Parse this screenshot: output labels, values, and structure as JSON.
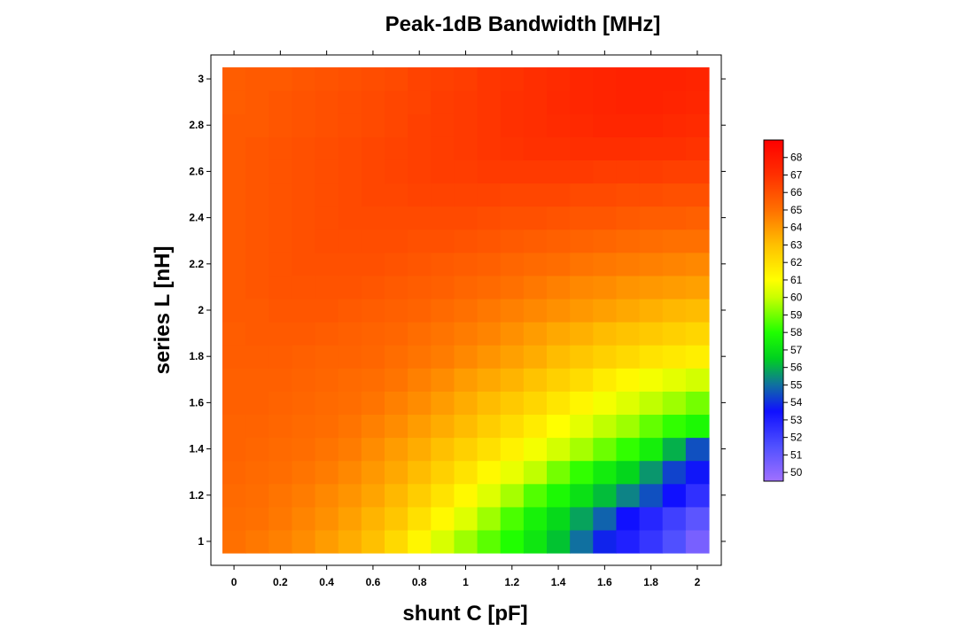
{
  "chart_data": {
    "type": "heatmap",
    "title": "Peak-1dB Bandwidth [MHz]",
    "xlabel": "shunt C [pF]",
    "ylabel": "series L [nH]",
    "xlim": [
      -0.05,
      2.05
    ],
    "ylim": [
      0.95,
      3.05
    ],
    "x_ticks": [
      0,
      0.2,
      0.4,
      0.6,
      0.8,
      1,
      1.2,
      1.4,
      1.6,
      1.8,
      2
    ],
    "x_tick_labels": [
      "0",
      "0.2",
      "0.4",
      "0.6",
      "0.8",
      "1",
      "1.2",
      "1.4",
      "1.6",
      "1.8",
      "2"
    ],
    "y_ticks": [
      1,
      1.2,
      1.4,
      1.6,
      1.8,
      2,
      2.2,
      2.4,
      2.6,
      2.8,
      3
    ],
    "y_tick_labels": [
      "1",
      "1.2",
      "1.4",
      "1.6",
      "1.8",
      "2",
      "2.2",
      "2.4",
      "2.6",
      "2.8",
      "3"
    ],
    "x": [
      0,
      0.1,
      0.2,
      0.3,
      0.4,
      0.5,
      0.6,
      0.7,
      0.8,
      0.9,
      1.0,
      1.1,
      1.2,
      1.3,
      1.4,
      1.5,
      1.6,
      1.7,
      1.8,
      1.9,
      2.0
    ],
    "y": [
      1.0,
      1.1,
      1.2,
      1.3,
      1.4,
      1.5,
      1.6,
      1.7,
      1.8,
      1.9,
      2.0,
      2.1,
      2.2,
      2.3,
      2.4,
      2.5,
      2.6,
      2.7,
      2.8,
      2.9,
      3.0
    ],
    "z_rows_low_to_high_y": [
      [
        65.0,
        64.8,
        64.6,
        64.3,
        63.9,
        63.5,
        63.0,
        62.2,
        61.3,
        60.3,
        59.5,
        58.7,
        58.0,
        57.2,
        56.3,
        55.0,
        53.8,
        53.0,
        52.3,
        51.5,
        50.5
      ],
      [
        65.1,
        65.0,
        64.8,
        64.5,
        64.2,
        63.8,
        63.3,
        62.8,
        62.0,
        61.2,
        60.4,
        59.5,
        58.5,
        57.6,
        56.8,
        55.8,
        54.8,
        53.5,
        52.8,
        52.0,
        51.2
      ],
      [
        65.2,
        65.1,
        64.9,
        64.7,
        64.4,
        64.1,
        63.7,
        63.2,
        62.6,
        61.9,
        61.2,
        60.4,
        59.6,
        58.6,
        57.8,
        57.0,
        56.2,
        55.3,
        54.5,
        53.5,
        52.5
      ],
      [
        65.3,
        65.2,
        65.1,
        64.9,
        64.7,
        64.4,
        64.0,
        63.6,
        63.1,
        62.5,
        61.9,
        61.2,
        60.6,
        59.9,
        59.0,
        58.2,
        57.4,
        56.7,
        55.6,
        54.3,
        53.6
      ],
      [
        65.4,
        65.3,
        65.2,
        65.1,
        64.9,
        64.7,
        64.3,
        63.9,
        63.5,
        63.0,
        62.5,
        62.0,
        61.4,
        60.8,
        60.2,
        59.6,
        58.9,
        58.2,
        57.5,
        56.0,
        54.5
      ],
      [
        65.4,
        65.4,
        65.3,
        65.2,
        65.1,
        64.9,
        64.6,
        64.3,
        63.9,
        63.5,
        63.1,
        62.6,
        62.1,
        61.6,
        61.0,
        60.5,
        59.9,
        59.5,
        58.8,
        58.2,
        57.8
      ],
      [
        65.5,
        65.5,
        65.4,
        65.3,
        65.2,
        65.1,
        64.9,
        64.6,
        64.3,
        63.9,
        63.5,
        63.1,
        62.7,
        62.3,
        61.8,
        61.3,
        60.8,
        60.4,
        59.9,
        59.5,
        59.0
      ],
      [
        65.5,
        65.5,
        65.5,
        65.4,
        65.3,
        65.2,
        65.1,
        64.9,
        64.6,
        64.3,
        63.9,
        63.6,
        63.3,
        62.9,
        62.5,
        62.1,
        61.6,
        61.2,
        60.8,
        60.5,
        60.2
      ],
      [
        65.6,
        65.6,
        65.6,
        65.5,
        65.4,
        65.4,
        65.3,
        65.1,
        64.9,
        64.7,
        64.4,
        64.1,
        63.8,
        63.5,
        63.1,
        62.8,
        62.5,
        62.2,
        61.9,
        61.7,
        61.5
      ],
      [
        65.6,
        65.7,
        65.7,
        65.7,
        65.6,
        65.5,
        65.4,
        65.3,
        65.1,
        64.9,
        64.7,
        64.5,
        64.2,
        63.9,
        63.6,
        63.4,
        63.1,
        62.9,
        62.7,
        62.5,
        62.3
      ],
      [
        65.7,
        65.7,
        65.8,
        65.8,
        65.8,
        65.7,
        65.6,
        65.5,
        65.4,
        65.2,
        65.0,
        64.8,
        64.6,
        64.4,
        64.2,
        64.0,
        63.8,
        63.6,
        63.4,
        63.2,
        63.1
      ],
      [
        65.7,
        65.8,
        65.9,
        65.9,
        65.9,
        65.9,
        65.8,
        65.7,
        65.6,
        65.5,
        65.3,
        65.2,
        65.0,
        64.8,
        64.6,
        64.4,
        64.3,
        64.1,
        64.0,
        63.9,
        63.8
      ],
      [
        65.7,
        65.8,
        65.9,
        66.0,
        66.0,
        66.0,
        66.0,
        65.9,
        65.8,
        65.7,
        65.6,
        65.5,
        65.3,
        65.2,
        65.1,
        64.9,
        64.8,
        64.7,
        64.6,
        64.5,
        64.4
      ],
      [
        65.7,
        65.8,
        65.9,
        66.0,
        66.1,
        66.1,
        66.1,
        66.1,
        66.0,
        66.0,
        65.9,
        65.8,
        65.7,
        65.6,
        65.5,
        65.4,
        65.3,
        65.2,
        65.1,
        65.0,
        65.0
      ],
      [
        65.7,
        65.8,
        65.9,
        66.0,
        66.1,
        66.2,
        66.2,
        66.2,
        66.2,
        66.2,
        66.2,
        66.1,
        66.0,
        66.0,
        65.9,
        65.8,
        65.8,
        65.7,
        65.6,
        65.6,
        65.5
      ],
      [
        65.7,
        65.8,
        65.9,
        66.0,
        66.1,
        66.2,
        66.3,
        66.3,
        66.4,
        66.4,
        66.4,
        66.4,
        66.3,
        66.3,
        66.3,
        66.2,
        66.2,
        66.1,
        66.1,
        66.0,
        66.0
      ],
      [
        65.7,
        65.8,
        65.9,
        66.0,
        66.1,
        66.2,
        66.3,
        66.4,
        66.5,
        66.6,
        66.6,
        66.7,
        66.7,
        66.7,
        66.7,
        66.7,
        66.6,
        66.6,
        66.6,
        66.5,
        66.5
      ],
      [
        65.7,
        65.8,
        65.9,
        66.0,
        66.1,
        66.2,
        66.3,
        66.4,
        66.5,
        66.6,
        66.7,
        66.8,
        66.9,
        67.0,
        67.0,
        67.1,
        67.1,
        67.1,
        67.0,
        67.0,
        66.9
      ],
      [
        65.7,
        65.7,
        65.8,
        65.9,
        66.0,
        66.1,
        66.2,
        66.3,
        66.5,
        66.6,
        66.7,
        66.8,
        67.0,
        67.1,
        67.2,
        67.3,
        67.4,
        67.4,
        67.4,
        67.3,
        67.2
      ],
      [
        65.6,
        65.7,
        65.8,
        65.9,
        66.0,
        66.1,
        66.2,
        66.3,
        66.4,
        66.6,
        66.7,
        66.8,
        67.0,
        67.1,
        67.3,
        67.4,
        67.5,
        67.6,
        67.6,
        67.5,
        67.4
      ],
      [
        65.6,
        65.7,
        65.7,
        65.8,
        65.9,
        66.0,
        66.1,
        66.2,
        66.4,
        66.5,
        66.6,
        66.8,
        66.9,
        67.1,
        67.2,
        67.4,
        67.5,
        67.6,
        67.6,
        67.6,
        67.5
      ]
    ],
    "colorbar": {
      "range": [
        49.5,
        69.0
      ],
      "ticks": [
        50,
        51,
        52,
        53,
        54,
        55,
        56,
        57,
        58,
        59,
        60,
        61,
        62,
        63,
        64,
        65,
        66,
        67,
        68
      ],
      "tick_labels": [
        "50",
        "51",
        "52",
        "53",
        "54",
        "55",
        "56",
        "57",
        "58",
        "59",
        "60",
        "61",
        "62",
        "63",
        "64",
        "65",
        "66",
        "67",
        "68"
      ],
      "colormap": [
        [
          49.5,
          "#a070ff"
        ],
        [
          51.5,
          "#5050ff"
        ],
        [
          53.5,
          "#1010ff"
        ],
        [
          55.0,
          "#1070a0"
        ],
        [
          56.5,
          "#00d020"
        ],
        [
          58.0,
          "#20ff00"
        ],
        [
          60.0,
          "#c8ff00"
        ],
        [
          61.0,
          "#ffff00"
        ],
        [
          63.0,
          "#ffc000"
        ],
        [
          65.0,
          "#ff7000"
        ],
        [
          67.0,
          "#ff3000"
        ],
        [
          69.0,
          "#ff0000"
        ]
      ]
    },
    "grid": false,
    "legend": "colorbar-right"
  }
}
